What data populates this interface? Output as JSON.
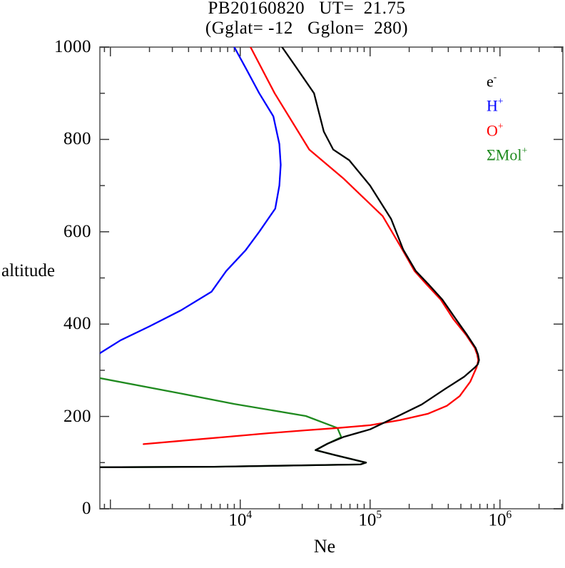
{
  "window": {
    "background": "#ffffff"
  },
  "chart_data": {
    "type": "line",
    "title": "PB20160820   UT=  21.75",
    "subtitle": "(Gglat= -12   Gglon=  280)",
    "xlabel": "Ne",
    "ylabel": "altitude",
    "x_scale": "log",
    "xlim": [
      830,
      3050000
    ],
    "ylim": [
      0,
      1000
    ],
    "grid": false,
    "legend_position": "top-right-inside",
    "y_major_ticks": [
      0,
      200,
      400,
      600,
      800,
      1000
    ],
    "y_minor_ticks": [
      100,
      300,
      500,
      700,
      900
    ],
    "x_labeled_ticks": [
      {
        "value": 10000,
        "base": "10",
        "exp": "4"
      },
      {
        "value": 100000,
        "base": "10",
        "exp": "5"
      },
      {
        "value": 1000000,
        "base": "10",
        "exp": "6"
      }
    ],
    "legend": [
      {
        "name": "electrons",
        "base": "e",
        "sup": "-",
        "color": "#000000"
      },
      {
        "name": "hydrogen-ions",
        "base": "H",
        "sup": "+",
        "color": "#0000ff"
      },
      {
        "name": "oxygen-ions",
        "base": "O",
        "sup": "+",
        "color": "#ff0000"
      },
      {
        "name": "molecular-ions",
        "base": "ΣMol",
        "sup": "+",
        "color": "#1f8a1f"
      }
    ],
    "series": [
      {
        "name": "sum-mol-plus",
        "label": "ΣMol+",
        "color": "#1f8a1f",
        "points": [
          [
            830,
            283
          ],
          [
            3300,
            251
          ],
          [
            9000,
            227
          ],
          [
            32000,
            201
          ],
          [
            56000,
            175
          ],
          [
            60000,
            155
          ],
          [
            47000,
            141
          ],
          [
            38000,
            127
          ],
          [
            54000,
            116
          ],
          [
            93000,
            100
          ],
          [
            84000,
            96
          ],
          [
            6300,
            91
          ],
          [
            830,
            90
          ]
        ]
      },
      {
        "name": "h-plus",
        "label": "H+",
        "color": "#0000ff",
        "points": [
          [
            830,
            337
          ],
          [
            1200,
            365
          ],
          [
            2000,
            395
          ],
          [
            3500,
            430
          ],
          [
            6000,
            470
          ],
          [
            7800,
            515
          ],
          [
            11000,
            560
          ],
          [
            14000,
            600
          ],
          [
            18600,
            650
          ],
          [
            20000,
            700
          ],
          [
            20500,
            745
          ],
          [
            20000,
            790
          ],
          [
            18000,
            850
          ],
          [
            14000,
            900
          ],
          [
            11000,
            955
          ],
          [
            9000,
            1000
          ]
        ]
      },
      {
        "name": "o-plus",
        "label": "O+",
        "color": "#ff0000",
        "points": [
          [
            1800,
            140
          ],
          [
            3800,
            148
          ],
          [
            8000,
            156
          ],
          [
            17000,
            164
          ],
          [
            32000,
            170
          ],
          [
            56000,
            175
          ],
          [
            100000,
            181
          ],
          [
            170000,
            192
          ],
          [
            280000,
            206
          ],
          [
            390000,
            223
          ],
          [
            490000,
            244
          ],
          [
            590000,
            275
          ],
          [
            660000,
            306
          ],
          [
            670000,
            313
          ],
          [
            680000,
            322
          ],
          [
            668000,
            334
          ],
          [
            640000,
            348
          ],
          [
            550000,
            376
          ],
          [
            440000,
            410
          ],
          [
            350000,
            453
          ],
          [
            270000,
            487
          ],
          [
            220000,
            515
          ],
          [
            170000,
            570
          ],
          [
            125000,
            634
          ],
          [
            62000,
            716
          ],
          [
            34000,
            778
          ],
          [
            18400,
            900
          ],
          [
            12000,
            1000
          ]
        ]
      },
      {
        "name": "e-minus",
        "label": "e-",
        "color": "#000000",
        "points": [
          [
            830,
            90
          ],
          [
            6300,
            91
          ],
          [
            84000,
            96
          ],
          [
            93000,
            100
          ],
          [
            54000,
            116
          ],
          [
            38000,
            127
          ],
          [
            47000,
            141
          ],
          [
            63000,
            156
          ],
          [
            100000,
            172
          ],
          [
            170000,
            203
          ],
          [
            250000,
            226
          ],
          [
            380000,
            260
          ],
          [
            530000,
            286
          ],
          [
            640000,
            306
          ],
          [
            675000,
            313
          ],
          [
            690000,
            322
          ],
          [
            678000,
            334
          ],
          [
            650000,
            348
          ],
          [
            560000,
            376
          ],
          [
            460000,
            410
          ],
          [
            360000,
            453
          ],
          [
            280000,
            487
          ],
          [
            225000,
            515
          ],
          [
            180000,
            561
          ],
          [
            145000,
            628
          ],
          [
            100000,
            700
          ],
          [
            69000,
            755
          ],
          [
            52000,
            778
          ],
          [
            44000,
            817
          ],
          [
            37000,
            900
          ],
          [
            27000,
            956
          ],
          [
            21000,
            1000
          ]
        ]
      }
    ],
    "style": {
      "frame_color": "#7a7a7a",
      "tick_color": "#3a3a3a",
      "line_width": 2.3
    }
  }
}
